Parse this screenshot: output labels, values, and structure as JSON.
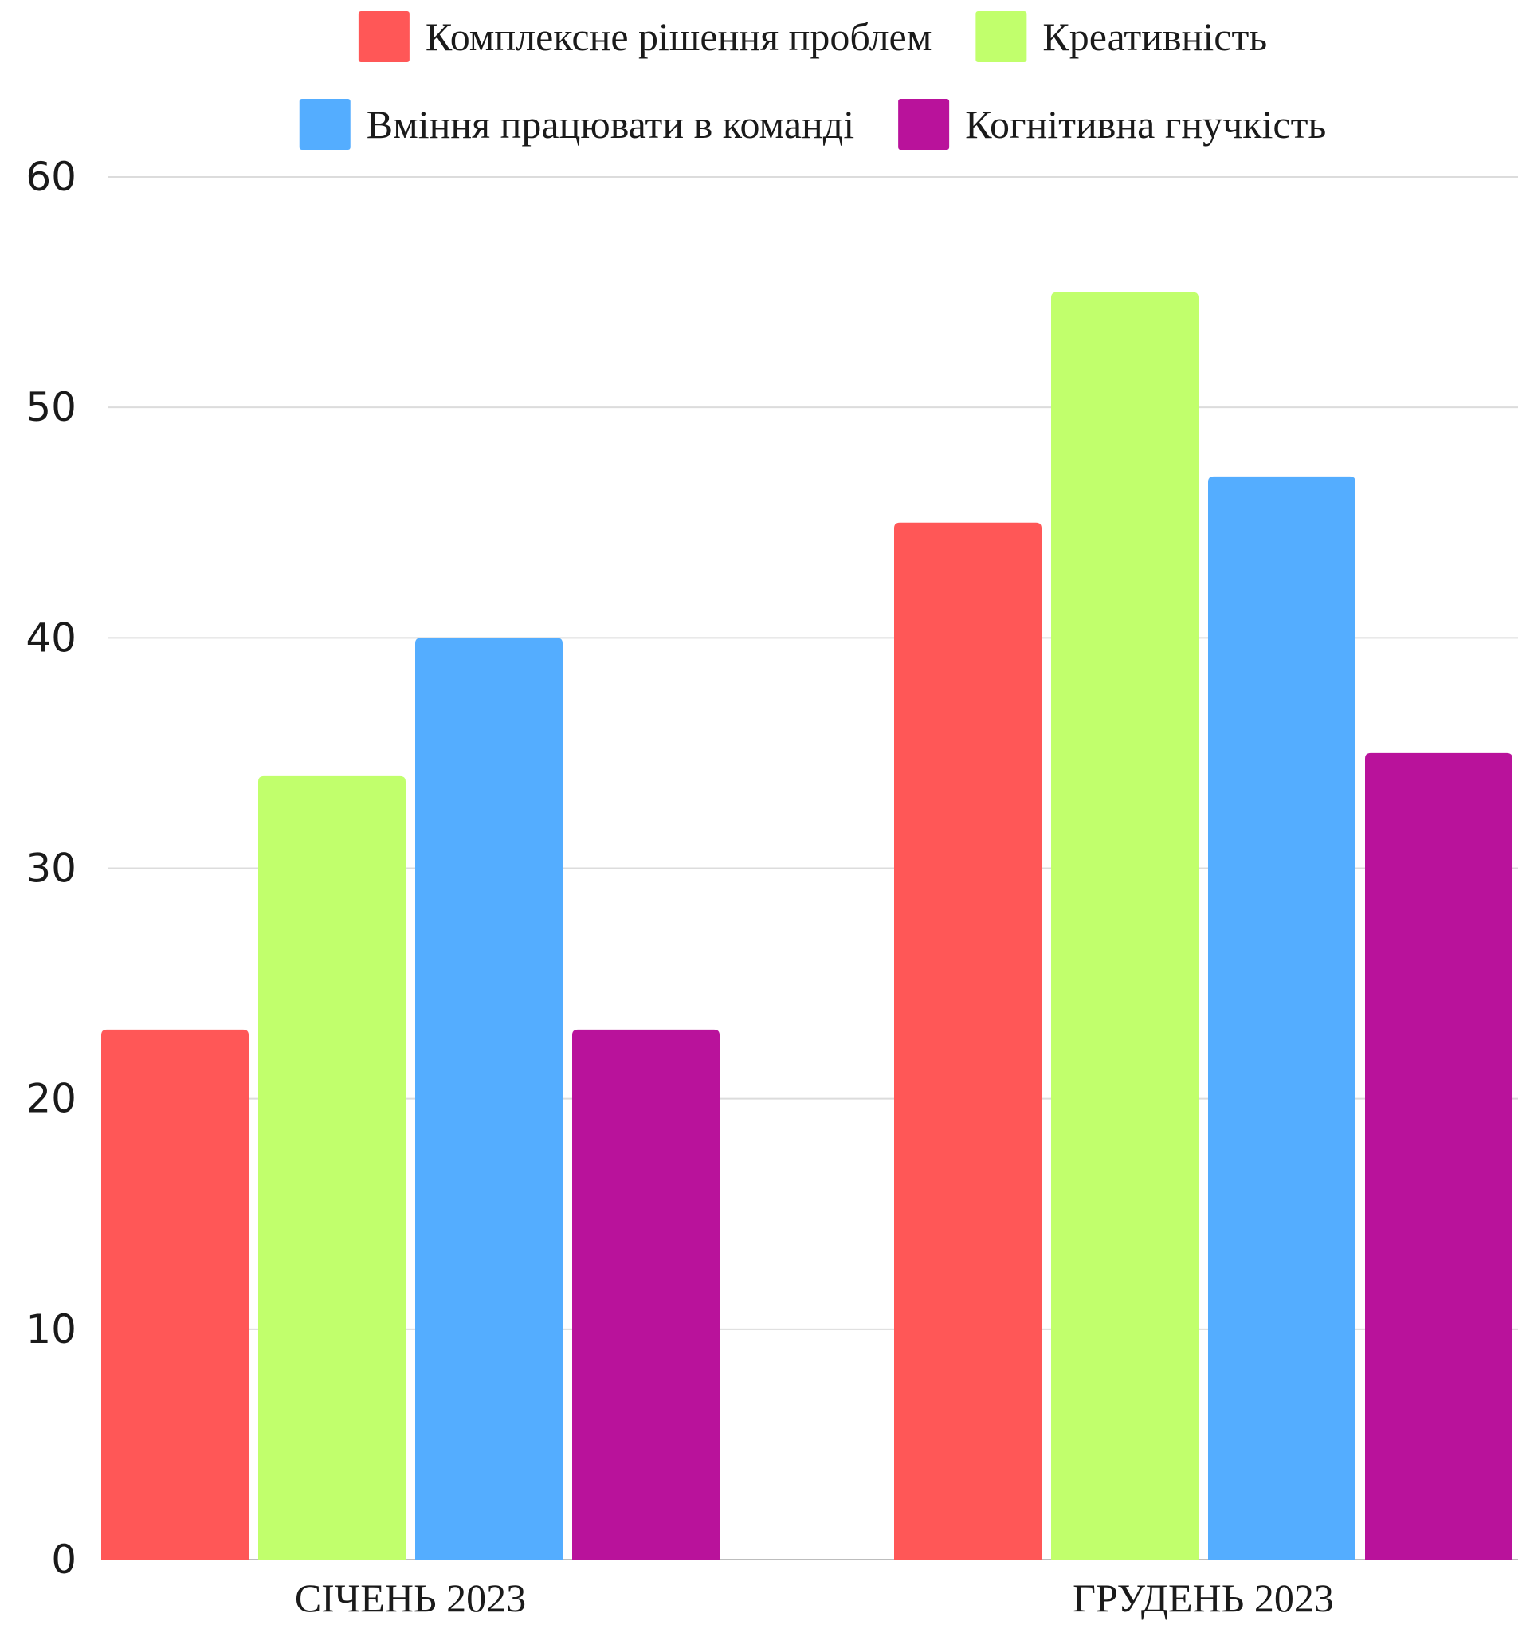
{
  "chart_data": {
    "type": "bar",
    "title": "",
    "xlabel": "",
    "ylabel": "",
    "categories": [
      "СІЧЕНЬ 2023",
      "ГРУДЕНЬ 2023"
    ],
    "series": [
      {
        "name": "Комплексне рішення проблем",
        "color": "#FF5757",
        "values": [
          23,
          45
        ]
      },
      {
        "name": "Креативність",
        "color": "#C1FF6C",
        "values": [
          34,
          55
        ]
      },
      {
        "name": "Вміння працювати в команді",
        "color": "#54ADFF",
        "values": [
          40,
          47
        ]
      },
      {
        "name": "Когнітивна гнучкість",
        "color": "#B9129B",
        "values": [
          23,
          35
        ]
      }
    ],
    "ylim": [
      0,
      60
    ],
    "yticks": [
      "0",
      "10",
      "20",
      "30",
      "40",
      "50",
      "60"
    ],
    "grid": true,
    "legend_position": "top"
  }
}
